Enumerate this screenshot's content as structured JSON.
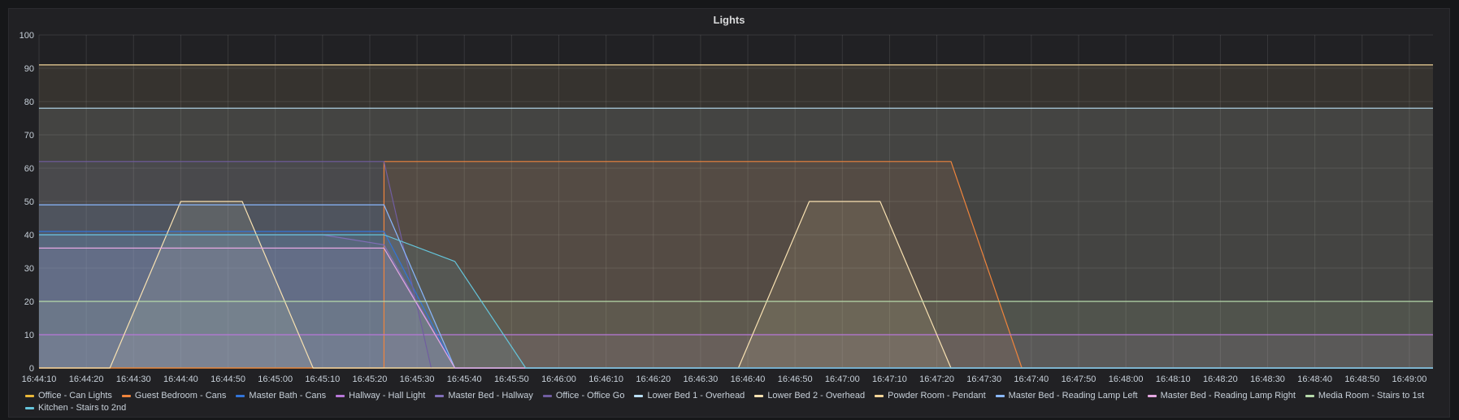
{
  "panel": {
    "title": "Lights"
  },
  "chart_data": {
    "type": "area",
    "title": "Lights",
    "xlabel": "",
    "ylabel": "",
    "ylim": [
      0,
      100
    ],
    "yticks": [
      0,
      10,
      20,
      30,
      40,
      50,
      60,
      70,
      80,
      90,
      100
    ],
    "xlim": [
      "16:44:10",
      "16:49:05"
    ],
    "xticks": [
      "16:44:10",
      "16:44:20",
      "16:44:30",
      "16:44:40",
      "16:44:50",
      "16:45:00",
      "16:45:10",
      "16:45:20",
      "16:45:30",
      "16:45:40",
      "16:45:50",
      "16:46:00",
      "16:46:10",
      "16:46:20",
      "16:46:30",
      "16:46:40",
      "16:46:50",
      "16:47:00",
      "16:47:10",
      "16:47:20",
      "16:47:30",
      "16:47:40",
      "16:47:50",
      "16:48:00",
      "16:48:10",
      "16:48:20",
      "16:48:30",
      "16:48:40",
      "16:48:50",
      "16:49:00"
    ],
    "grid": true,
    "legend_position": "bottom",
    "series": [
      {
        "name": "Office - Can Lights",
        "color": "#eab839",
        "points": [
          [
            "16:44:10",
            0
          ],
          [
            "16:49:05",
            0
          ]
        ]
      },
      {
        "name": "Guest Bedroom - Cans",
        "color": "#ef843c",
        "points": [
          [
            "16:44:10",
            0
          ],
          [
            "16:45:23",
            0
          ],
          [
            "16:45:23",
            62
          ],
          [
            "16:47:23",
            62
          ],
          [
            "16:47:38",
            0
          ],
          [
            "16:49:05",
            0
          ]
        ]
      },
      {
        "name": "Master Bath - Cans",
        "color": "#3274d9",
        "points": [
          [
            "16:44:10",
            41
          ],
          [
            "16:45:23",
            41
          ],
          [
            "16:45:38",
            0
          ],
          [
            "16:49:05",
            0
          ]
        ]
      },
      {
        "name": "Hallway - Hall Light",
        "color": "#b877d9",
        "points": [
          [
            "16:44:10",
            10
          ],
          [
            "16:49:05",
            10
          ]
        ]
      },
      {
        "name": "Master Bed - Hallway",
        "color": "#806eb7",
        "points": [
          [
            "16:44:10",
            40
          ],
          [
            "16:44:30",
            40
          ],
          [
            "16:44:40",
            40
          ],
          [
            "16:45:10",
            40
          ],
          [
            "16:45:23",
            37
          ],
          [
            "16:45:38",
            0
          ],
          [
            "16:49:05",
            0
          ]
        ]
      },
      {
        "name": "Office - Office Go",
        "color": "#705da0",
        "points": [
          [
            "16:44:10",
            62
          ],
          [
            "16:45:23",
            62
          ],
          [
            "16:45:33",
            0
          ],
          [
            "16:49:05",
            0
          ]
        ]
      },
      {
        "name": "Lower Bed 1 - Overhead",
        "color": "#badff4",
        "points": [
          [
            "16:44:10",
            78
          ],
          [
            "16:49:05",
            78
          ]
        ]
      },
      {
        "name": "Lower Bed 2 - Overhead",
        "color": "#f9e2b2",
        "points": [
          [
            "16:44:10",
            0
          ],
          [
            "16:44:25",
            0
          ],
          [
            "16:44:40",
            50
          ],
          [
            "16:44:53",
            50
          ],
          [
            "16:45:08",
            0
          ],
          [
            "16:46:38",
            0
          ],
          [
            "16:46:53",
            50
          ],
          [
            "16:47:08",
            50
          ],
          [
            "16:47:23",
            0
          ],
          [
            "16:49:05",
            0
          ]
        ]
      },
      {
        "name": "Powder Room - Pendant",
        "color": "#f4d598",
        "points": [
          [
            "16:44:10",
            91
          ],
          [
            "16:49:05",
            91
          ]
        ]
      },
      {
        "name": "Master Bed - Reading Lamp Left",
        "color": "#8ab8ff",
        "points": [
          [
            "16:44:10",
            49
          ],
          [
            "16:45:23",
            49
          ],
          [
            "16:45:38",
            0
          ],
          [
            "16:49:05",
            0
          ]
        ]
      },
      {
        "name": "Master Bed - Reading Lamp Right",
        "color": "#e5a8e2",
        "points": [
          [
            "16:44:10",
            36
          ],
          [
            "16:45:23",
            36
          ],
          [
            "16:45:38",
            0
          ],
          [
            "16:49:05",
            0
          ]
        ]
      },
      {
        "name": "Media Room - Stairs to 1st",
        "color": "#b7dbab",
        "points": [
          [
            "16:44:10",
            20
          ],
          [
            "16:49:05",
            20
          ]
        ]
      },
      {
        "name": "Kitchen - Stairs to 2nd",
        "color": "#65c5db",
        "points": [
          [
            "16:44:10",
            40
          ],
          [
            "16:45:23",
            40
          ],
          [
            "16:45:38",
            32
          ],
          [
            "16:45:53",
            0
          ],
          [
            "16:49:05",
            0
          ]
        ]
      }
    ]
  }
}
